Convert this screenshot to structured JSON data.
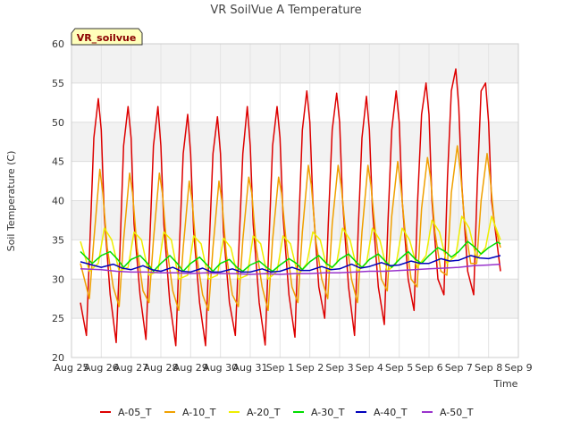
{
  "chart_data": {
    "type": "line",
    "title": "VR SoilVue A Temperature",
    "xlabel": "Time",
    "ylabel": "Soil Temperature (C)",
    "ylim": [
      20,
      60
    ],
    "yticks": [
      20,
      25,
      30,
      35,
      40,
      45,
      50,
      55,
      60
    ],
    "xlim": [
      0,
      15
    ],
    "xticks": [
      {
        "x": 0,
        "label": "Aug 25"
      },
      {
        "x": 1,
        "label": "Aug 26"
      },
      {
        "x": 2,
        "label": "Aug 27"
      },
      {
        "x": 3,
        "label": "Aug 28"
      },
      {
        "x": 4,
        "label": "Aug 29"
      },
      {
        "x": 5,
        "label": "Aug 30"
      },
      {
        "x": 6,
        "label": "Aug 31"
      },
      {
        "x": 7,
        "label": "Sep 1"
      },
      {
        "x": 8,
        "label": "Sep 2"
      },
      {
        "x": 9,
        "label": "Sep 3"
      },
      {
        "x": 10,
        "label": "Sep 4"
      },
      {
        "x": 11,
        "label": "Sep 5"
      },
      {
        "x": 12,
        "label": "Sep 6"
      },
      {
        "x": 13,
        "label": "Sep 7"
      },
      {
        "x": 14,
        "label": "Sep 8"
      },
      {
        "x": 15,
        "label": "Sep 9"
      }
    ],
    "x_unit_note": "days after Aug 25 00:00",
    "grid": true,
    "badge": "VR_soilvue",
    "legend_position": "bottom",
    "series": [
      {
        "name": "A-05_T",
        "color": "#dd0000",
        "x": [
          0.3,
          0.5,
          0.62,
          0.75,
          0.9,
          1.0,
          1.1,
          1.3,
          1.5,
          1.62,
          1.75,
          1.9,
          2.0,
          2.1,
          2.3,
          2.5,
          2.62,
          2.75,
          2.9,
          3.0,
          3.1,
          3.3,
          3.5,
          3.62,
          3.75,
          3.9,
          4.0,
          4.1,
          4.3,
          4.5,
          4.62,
          4.75,
          4.9,
          5.0,
          5.1,
          5.3,
          5.5,
          5.62,
          5.75,
          5.9,
          6.0,
          6.1,
          6.3,
          6.5,
          6.62,
          6.75,
          6.9,
          7.0,
          7.1,
          7.3,
          7.5,
          7.62,
          7.75,
          7.9,
          8.0,
          8.1,
          8.3,
          8.5,
          8.62,
          8.75,
          8.9,
          9.0,
          9.1,
          9.3,
          9.5,
          9.62,
          9.75,
          9.9,
          10.0,
          10.1,
          10.3,
          10.5,
          10.62,
          10.75,
          10.9,
          11.0,
          11.1,
          11.3,
          11.5,
          11.62,
          11.75,
          11.9,
          12.0,
          12.1,
          12.3,
          12.5,
          12.62,
          12.75,
          12.9,
          13.0,
          13.1,
          13.3,
          13.5,
          13.62,
          13.75,
          13.9,
          14.0,
          14.1,
          14.3,
          14.4
        ],
        "y": [
          27,
          22.8,
          35,
          48,
          53,
          49,
          38,
          28,
          21.9,
          33,
          47,
          52,
          48,
          37,
          28,
          22.3,
          34,
          47,
          52,
          47,
          37,
          27,
          21.5,
          34,
          46,
          51,
          46,
          36,
          27,
          21.5,
          34,
          46,
          50.7,
          46,
          36,
          27,
          22.8,
          34,
          46,
          52,
          47,
          37,
          27,
          21.6,
          34,
          47,
          52,
          48,
          38,
          28,
          22.6,
          36,
          49,
          54,
          50,
          40,
          29,
          25,
          37,
          49,
          53.7,
          50,
          40,
          29,
          22.8,
          36,
          48,
          53.3,
          49,
          39,
          29,
          24.2,
          37,
          49,
          54,
          50,
          40,
          30,
          26,
          40,
          51,
          55,
          51,
          40,
          30,
          28,
          43,
          54,
          56.8,
          52,
          42,
          31,
          28,
          42,
          54,
          55,
          50,
          40,
          34,
          31
        ]
      },
      {
        "name": "A-10_T",
        "color": "#f0a000",
        "x": [
          0.3,
          0.6,
          0.75,
          0.95,
          1.05,
          1.2,
          1.4,
          1.6,
          1.75,
          1.95,
          2.05,
          2.2,
          2.4,
          2.6,
          2.75,
          2.95,
          3.05,
          3.2,
          3.4,
          3.6,
          3.75,
          3.95,
          4.05,
          4.2,
          4.4,
          4.6,
          4.75,
          4.95,
          5.05,
          5.2,
          5.4,
          5.6,
          5.75,
          5.95,
          6.05,
          6.2,
          6.4,
          6.6,
          6.75,
          6.95,
          7.05,
          7.2,
          7.4,
          7.6,
          7.75,
          7.95,
          8.05,
          8.2,
          8.4,
          8.6,
          8.75,
          8.95,
          9.05,
          9.2,
          9.4,
          9.6,
          9.75,
          9.95,
          10.05,
          10.2,
          10.4,
          10.6,
          10.75,
          10.95,
          11.05,
          11.2,
          11.4,
          11.6,
          11.75,
          11.95,
          12.05,
          12.2,
          12.4,
          12.6,
          12.75,
          12.95,
          13.05,
          13.2,
          13.4,
          13.6,
          13.75,
          13.95,
          14.05,
          14.2,
          14.4
        ],
        "y": [
          32,
          27.5,
          35,
          44,
          41,
          34,
          29,
          26.5,
          35,
          43.5,
          41,
          34,
          28.5,
          27,
          35,
          43.5,
          41,
          34,
          28.5,
          26,
          34,
          42.5,
          40,
          33,
          28,
          26,
          34,
          42.5,
          40,
          33,
          28,
          26.5,
          35,
          43,
          41,
          34,
          29,
          26,
          35,
          43,
          41,
          35,
          29,
          27,
          36,
          44.5,
          42,
          35,
          30,
          27.5,
          37,
          44.5,
          42,
          36,
          30,
          27,
          36,
          44.5,
          42,
          36,
          30,
          28.5,
          38,
          45,
          42,
          36,
          30,
          29,
          39,
          45.5,
          43,
          36,
          31,
          30.5,
          41,
          47,
          44,
          37,
          32,
          32,
          40,
          46,
          43,
          37,
          34
        ]
      },
      {
        "name": "A-20_T",
        "color": "#eeee00",
        "x": [
          0.3,
          0.6,
          0.9,
          1.1,
          1.35,
          1.6,
          1.9,
          2.1,
          2.35,
          2.6,
          2.9,
          3.1,
          3.35,
          3.6,
          3.9,
          4.1,
          4.35,
          4.6,
          4.9,
          5.1,
          5.35,
          5.6,
          5.9,
          6.1,
          6.35,
          6.6,
          6.9,
          7.1,
          7.35,
          7.6,
          7.9,
          8.1,
          8.35,
          8.6,
          8.9,
          9.1,
          9.35,
          9.6,
          9.9,
          10.1,
          10.35,
          10.6,
          10.9,
          11.1,
          11.35,
          11.6,
          11.9,
          12.1,
          12.35,
          12.6,
          12.9,
          13.1,
          13.35,
          13.6,
          13.9,
          14.1,
          14.4
        ],
        "y": [
          34.8,
          31,
          32,
          36.5,
          35,
          31,
          31.5,
          36,
          35,
          30.5,
          31,
          36,
          35,
          30,
          30.5,
          35.5,
          34.5,
          30,
          30.5,
          35.2,
          34,
          30,
          30.5,
          35.5,
          34.5,
          30,
          31,
          35.5,
          34.5,
          30.5,
          32,
          36,
          35,
          31,
          32,
          36.5,
          35,
          31,
          32,
          36.5,
          35,
          31,
          32,
          36.5,
          35,
          31.5,
          33,
          37.5,
          36,
          32,
          33,
          38,
          36.5,
          32.5,
          34,
          38,
          35
        ]
      },
      {
        "name": "A-30_T",
        "color": "#00dd00",
        "x": [
          0.3,
          0.7,
          1.0,
          1.3,
          1.55,
          1.75,
          2.0,
          2.3,
          2.55,
          2.75,
          3.0,
          3.3,
          3.55,
          3.75,
          4.0,
          4.3,
          4.55,
          4.75,
          5.0,
          5.3,
          5.55,
          5.75,
          6.0,
          6.3,
          6.55,
          6.75,
          7.0,
          7.3,
          7.55,
          7.75,
          8.0,
          8.3,
          8.55,
          8.75,
          9.0,
          9.3,
          9.55,
          9.75,
          10.0,
          10.3,
          10.55,
          10.75,
          11.0,
          11.3,
          11.55,
          11.75,
          12.0,
          12.3,
          12.55,
          12.75,
          13.0,
          13.3,
          13.55,
          13.75,
          14.0,
          14.3,
          14.4
        ],
        "y": [
          33.5,
          32,
          33,
          33.5,
          32.5,
          31.5,
          32.5,
          33,
          32,
          31,
          32,
          33,
          32,
          31,
          32,
          32.8,
          31.8,
          31,
          32,
          32.5,
          31.5,
          31,
          31.8,
          32.3,
          31.5,
          31,
          31.8,
          32.6,
          32,
          31.2,
          32.2,
          33,
          32,
          31.5,
          32.5,
          33.2,
          32.2,
          31.5,
          32.5,
          33.2,
          32.2,
          31.5,
          32.5,
          33.5,
          32.5,
          32,
          33,
          34,
          33.5,
          32.8,
          33.5,
          34.8,
          34,
          33.2,
          34,
          34.7,
          34.5
        ]
      },
      {
        "name": "A-40_T",
        "color": "#0000bb",
        "x": [
          0.3,
          0.7,
          1.0,
          1.4,
          1.7,
          2.0,
          2.4,
          2.7,
          3.0,
          3.4,
          3.7,
          4.0,
          4.4,
          4.7,
          5.0,
          5.4,
          5.7,
          6.0,
          6.4,
          6.7,
          7.0,
          7.4,
          7.7,
          8.0,
          8.4,
          8.7,
          9.0,
          9.4,
          9.7,
          10.0,
          10.4,
          10.7,
          11.0,
          11.4,
          11.7,
          12.0,
          12.4,
          12.7,
          13.0,
          13.4,
          13.7,
          14.0,
          14.4
        ],
        "y": [
          32.2,
          31.8,
          31.5,
          31.9,
          31.4,
          31.2,
          31.7,
          31.2,
          31,
          31.5,
          31,
          30.9,
          31.4,
          30.9,
          30.9,
          31.3,
          30.9,
          30.9,
          31.3,
          30.9,
          31,
          31.5,
          31.1,
          31.1,
          31.6,
          31.2,
          31.3,
          31.9,
          31.4,
          31.6,
          32.1,
          31.7,
          31.8,
          32.3,
          32,
          32,
          32.6,
          32.3,
          32.4,
          33,
          32.7,
          32.6,
          33
        ]
      },
      {
        "name": "A-50_T",
        "color": "#9933cc",
        "x": [
          0.3,
          1.0,
          1.5,
          2.0,
          2.5,
          3.0,
          3.5,
          4.0,
          4.5,
          5.0,
          5.5,
          6.0,
          6.5,
          7.0,
          7.5,
          8.0,
          8.5,
          9.0,
          9.5,
          10.0,
          10.5,
          11.0,
          11.5,
          12.0,
          12.5,
          13.0,
          13.5,
          14.0,
          14.4
        ],
        "y": [
          31.3,
          31.2,
          31,
          30.9,
          30.9,
          30.8,
          30.8,
          30.7,
          30.8,
          30.7,
          30.7,
          30.6,
          30.7,
          30.6,
          30.7,
          30.7,
          30.8,
          30.8,
          30.9,
          31,
          31,
          31.1,
          31.2,
          31.3,
          31.4,
          31.5,
          31.7,
          31.8,
          31.9
        ]
      }
    ]
  }
}
